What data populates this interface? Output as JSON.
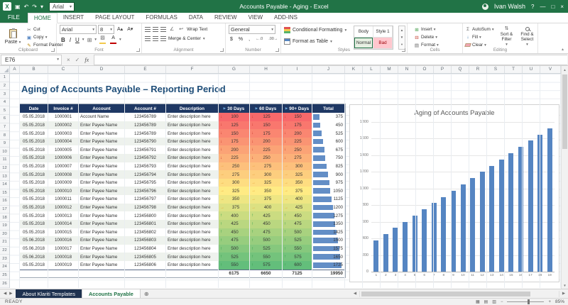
{
  "colors": {
    "accent": "#217346",
    "table_header": "#1f3864",
    "title_text": "#1f4e79",
    "databar_blue": "#638ec6",
    "scale_min": "#f8696b",
    "scale_mid": "#ffeb84",
    "scale_max": "#63be7b",
    "arrow_down": "#c9392f",
    "arrow_right": "#e8a23b",
    "arrow_up": "#2f9e49"
  },
  "icons": {
    "logo": "X",
    "save": "▣",
    "undo": "↶",
    "redo": "↷",
    "dropdown": "▾",
    "help": "?",
    "minimize": "—",
    "maximize": "□",
    "close": "×",
    "cut": "✂",
    "copy": "▣",
    "format_painter": "✎",
    "bold": "B",
    "italic": "I",
    "underline": "U",
    "grow_font": "A▴",
    "shrink_font": "A▾",
    "borders": "⊞",
    "fill_color": "▨",
    "font_color": "A",
    "orientation": "∠",
    "wrap": "↩",
    "currency": "$",
    "percent": "%",
    "comma": ",",
    "inc_decimal": "←.0",
    "dec_decimal": ".00→",
    "autosum": "Σ",
    "fill": "↓",
    "sort": "⇅",
    "insert": "⊞",
    "delete": "⊟",
    "format": "▤",
    "cancel": "×",
    "enter": "✓",
    "fx": "fx",
    "left": "◀",
    "right": "▶",
    "up_small": "▲",
    "down_small": "▼",
    "add_sheet": "⊕",
    "view_normal": "▦",
    "view_layout": "▤",
    "view_break": "▥",
    "zoom_out": "−",
    "zoom_in": "+",
    "arrow_down": "↓",
    "arrow_right": "→",
    "arrow_up": "↑",
    "header_arrow": "▶",
    "collapse": "▴"
  },
  "titlebar": {
    "title": "Accounts Payable - Aging - Excel",
    "user": "Ivan Walsh",
    "qat_font": "Arial"
  },
  "ribbon": {
    "tabs": [
      "FILE",
      "HOME",
      "INSERT",
      "PAGE LAYOUT",
      "FORMULAS",
      "DATA",
      "REVIEW",
      "VIEW",
      "ADD-INS"
    ],
    "active_tab": "HOME",
    "clipboard": {
      "label": "Clipboard",
      "paste": "Paste",
      "cut": "Cut",
      "copy": "Copy",
      "format_painter": "Format Painter"
    },
    "font": {
      "label": "Font",
      "family": "Arial",
      "size": "8"
    },
    "alignment": {
      "label": "Alignment",
      "wrap_text": "Wrap Text",
      "merge_center": "Merge & Center"
    },
    "number": {
      "label": "Number",
      "format": "General"
    },
    "styles": {
      "label": "Styles",
      "conditional": "Conditional Formatting",
      "format_table": "Format as Table",
      "gallery": [
        "Body",
        "Style 1",
        "Normal",
        "Bad"
      ]
    },
    "cells": {
      "label": "Cells",
      "insert": "Insert",
      "delete": "Delete",
      "format": "Format"
    },
    "editing": {
      "label": "Editing",
      "autosum": "AutoSum",
      "fill": "Fill",
      "clear": "Clear",
      "sort_filter": "Sort & Filter",
      "find_select": "Find & Select"
    }
  },
  "formula_bar": {
    "cell_ref": "E76",
    "formula": ""
  },
  "grid": {
    "columns": [
      "A",
      "B",
      "C",
      "D",
      "E",
      "F",
      "G",
      "H",
      "I",
      "J",
      "K",
      "L",
      "M",
      "N",
      "O",
      "P",
      "Q",
      "R",
      "S",
      "T",
      "U",
      "V"
    ],
    "row_count": 26
  },
  "sheet": {
    "title": "Aging of Accounts Payable – Reporting Period",
    "table": {
      "headers": [
        "Date",
        "Invoice #",
        "Account",
        "Account #",
        "Description",
        "30 Days",
        "60 Days",
        "90+ Days",
        "Total"
      ],
      "rows": [
        {
          "date": "05.05.2018",
          "invoice": "1000001",
          "account": "Account Name",
          "account_no": "123456789",
          "description": "Enter description here",
          "d30": 100,
          "d60": 125,
          "d90": 150,
          "total": 375,
          "arrow": "down"
        },
        {
          "date": "05.05.2018",
          "invoice": "1000002",
          "account": "Enter Payee Name",
          "account_no": "123456789",
          "description": "Enter description here",
          "d30": 125,
          "d60": 150,
          "d90": 175,
          "total": 450,
          "arrow": "down"
        },
        {
          "date": "05.05.2018",
          "invoice": "1000003",
          "account": "Enter Payee Name",
          "account_no": "123456789",
          "description": "Enter description here",
          "d30": 150,
          "d60": 175,
          "d90": 200,
          "total": 525,
          "arrow": "down"
        },
        {
          "date": "05.05.2018",
          "invoice": "1000004",
          "account": "Enter Payee Name",
          "account_no": "123456790",
          "description": "Enter description here",
          "d30": 175,
          "d60": 200,
          "d90": 225,
          "total": 600,
          "arrow": "down"
        },
        {
          "date": "05.05.2018",
          "invoice": "1000005",
          "account": "Enter Payee Name",
          "account_no": "123456791",
          "description": "Enter description here",
          "d30": 200,
          "d60": 225,
          "d90": 250,
          "total": 675,
          "arrow": "down"
        },
        {
          "date": "05.05.2018",
          "invoice": "1000006",
          "account": "Enter Payee Name",
          "account_no": "123456792",
          "description": "Enter description here",
          "d30": 225,
          "d60": 250,
          "d90": 275,
          "total": 750,
          "arrow": "down"
        },
        {
          "date": "05.05.2018",
          "invoice": "1000007",
          "account": "Enter Payee Name",
          "account_no": "123456793",
          "description": "Enter description here",
          "d30": 250,
          "d60": 275,
          "d90": 300,
          "total": 825,
          "arrow": "right"
        },
        {
          "date": "05.05.2018",
          "invoice": "1000008",
          "account": "Enter Payee Name",
          "account_no": "123456794",
          "description": "Enter description here",
          "d30": 275,
          "d60": 300,
          "d90": 325,
          "total": 900,
          "arrow": "right"
        },
        {
          "date": "05.05.2018",
          "invoice": "1000009",
          "account": "Enter Payee Name",
          "account_no": "123456795",
          "description": "Enter description here",
          "d30": 300,
          "d60": 325,
          "d90": 350,
          "total": 975,
          "arrow": "right"
        },
        {
          "date": "05.05.2018",
          "invoice": "1000010",
          "account": "Enter Payee Name",
          "account_no": "123456796",
          "description": "Enter description here",
          "d30": 325,
          "d60": 350,
          "d90": 375,
          "total": 1050,
          "arrow": "right"
        },
        {
          "date": "05.05.2018",
          "invoice": "1000011",
          "account": "Enter Payee Name",
          "account_no": "123456797",
          "description": "Enter description here",
          "d30": 350,
          "d60": 375,
          "d90": 400,
          "total": 1125,
          "arrow": "right"
        },
        {
          "date": "05.05.2018",
          "invoice": "1000012",
          "account": "Enter Payee Name",
          "account_no": "123456798",
          "description": "Enter description here",
          "d30": 375,
          "d60": 400,
          "d90": 425,
          "total": 1200,
          "arrow": "right"
        },
        {
          "date": "05.05.2018",
          "invoice": "1000013",
          "account": "Enter Payee Name",
          "account_no": "123456800",
          "description": "Enter description here",
          "d30": 400,
          "d60": 425,
          "d90": 450,
          "total": 1275,
          "arrow": "up"
        },
        {
          "date": "05.05.2018",
          "invoice": "1000014",
          "account": "Enter Payee Name",
          "account_no": "123456801",
          "description": "Enter description here",
          "d30": 425,
          "d60": 450,
          "d90": 475,
          "total": 1350,
          "arrow": "up"
        },
        {
          "date": "05.05.2018",
          "invoice": "1000015",
          "account": "Enter Payee Name",
          "account_no": "123456802",
          "description": "Enter description here",
          "d30": 450,
          "d60": 475,
          "d90": 500,
          "total": 1425,
          "arrow": "up"
        },
        {
          "date": "05.06.2018",
          "invoice": "1000016",
          "account": "Enter Payee Name",
          "account_no": "123456803",
          "description": "Enter description here",
          "d30": 475,
          "d60": 500,
          "d90": 525,
          "total": 1500,
          "arrow": "up"
        },
        {
          "date": "05.06.2018",
          "invoice": "1000017",
          "account": "Enter Payee Name",
          "account_no": "123456804",
          "description": "Enter description here",
          "d30": 500,
          "d60": 525,
          "d90": 550,
          "total": 1575,
          "arrow": "up"
        },
        {
          "date": "05.06.2018",
          "invoice": "1000018",
          "account": "Enter Payee Name",
          "account_no": "123456805",
          "description": "Enter description here",
          "d30": 525,
          "d60": 550,
          "d90": 575,
          "total": 1650,
          "arrow": "up"
        },
        {
          "date": "05.05.2018",
          "invoice": "1000019",
          "account": "Enter Payee Name",
          "account_no": "123456806",
          "description": "Enter description here",
          "d30": 550,
          "d60": 575,
          "d90": 600,
          "total": 1725,
          "arrow": "up"
        }
      ],
      "totals": {
        "d30": "6175",
        "d60": "6650",
        "d90": "7125",
        "total": "19950"
      }
    }
  },
  "chart_data": {
    "type": "bar",
    "title": "Aging of Accounts Payable",
    "categories": [
      "1",
      "2",
      "3",
      "4",
      "5",
      "6",
      "7",
      "8",
      "9",
      "10",
      "11",
      "12",
      "13",
      "14",
      "15",
      "16",
      "17",
      "18",
      "19"
    ],
    "values": [
      375,
      450,
      525,
      600,
      675,
      750,
      825,
      900,
      975,
      1050,
      1125,
      1200,
      1275,
      1350,
      1425,
      1500,
      1575,
      1650,
      1725
    ],
    "xlabel": "",
    "ylabel": "",
    "ylim": [
      0,
      1800
    ],
    "ytick_step": 200,
    "grid": true,
    "legend": "none",
    "bar_color": "#5585c2"
  },
  "sheet_tabs": {
    "tab_about": "About Klariti Templates",
    "tab_ap": "Accounts Payable",
    "active": "Accounts Payable"
  },
  "status_bar": {
    "mode": "READY",
    "zoom": "85%"
  }
}
